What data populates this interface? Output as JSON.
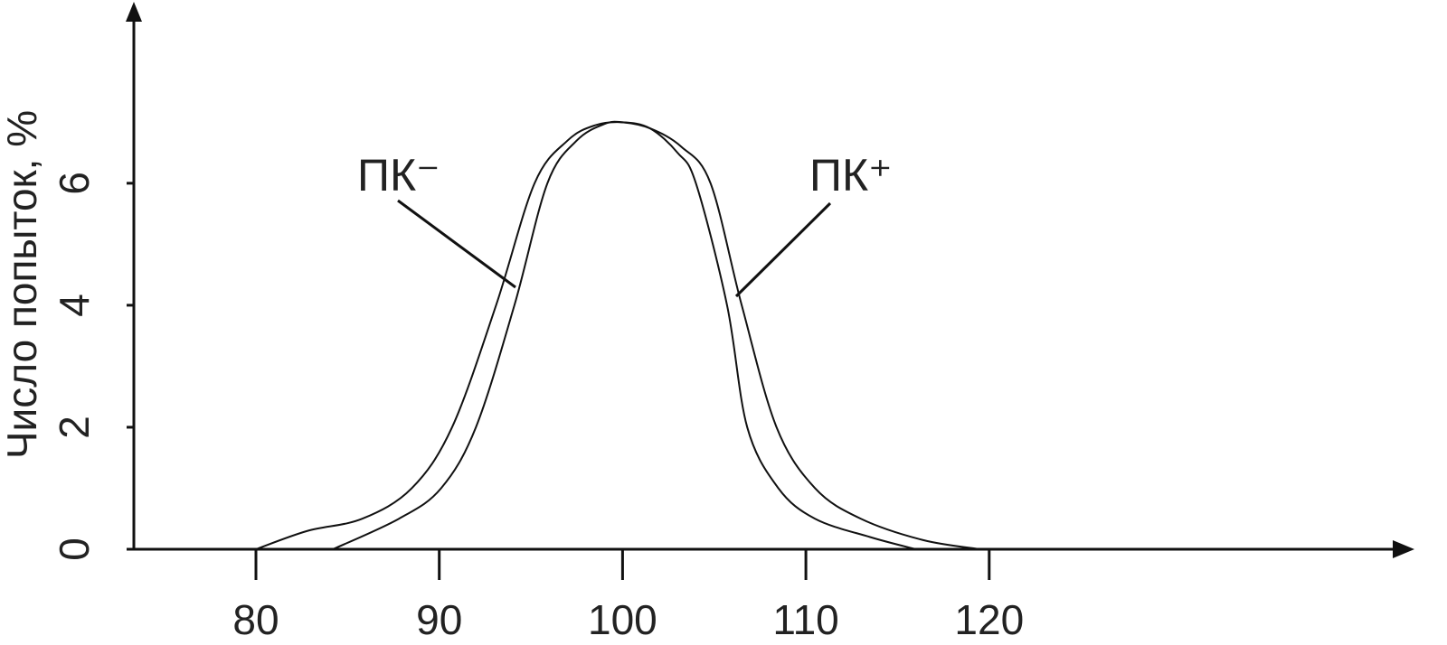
{
  "chart_data": {
    "type": "line",
    "y_label": "Число попыток, %",
    "xlim": [
      73.34,
      143
    ],
    "ylim": [
      0,
      8.93
    ],
    "xticks": [
      80,
      90,
      100,
      110,
      120
    ],
    "yticks": [
      0,
      2,
      4,
      6
    ],
    "series": [
      {
        "name": "ПК⁺",
        "color": "#111111",
        "x": [
          80,
          82.8,
          85.8,
          88.5,
          90.7,
          93.1,
          95.2,
          97,
          98.5,
          100,
          101.5,
          103,
          104,
          105.7,
          106.8,
          108.5,
          110.5,
          113.5,
          116
        ],
        "values": [
          0,
          0.3,
          0.5,
          1,
          2,
          4,
          6,
          6.7,
          6.95,
          7,
          6.9,
          6.5,
          6,
          4,
          2,
          1,
          0.5,
          0.2,
          0
        ]
      },
      {
        "name": "ПК⁻",
        "color": "#111111",
        "x": [
          84.2,
          87.8,
          90.1,
          92,
          94.1,
          95.9,
          97.5,
          99,
          100,
          101.5,
          103.2,
          104.8,
          106.5,
          108.4,
          110.5,
          113,
          116.4,
          119.5
        ],
        "values": [
          0,
          0.5,
          1,
          2,
          4,
          6,
          6.7,
          6.97,
          7,
          6.9,
          6.6,
          6,
          4,
          2,
          1,
          0.5,
          0.15,
          0
        ]
      }
    ]
  }
}
